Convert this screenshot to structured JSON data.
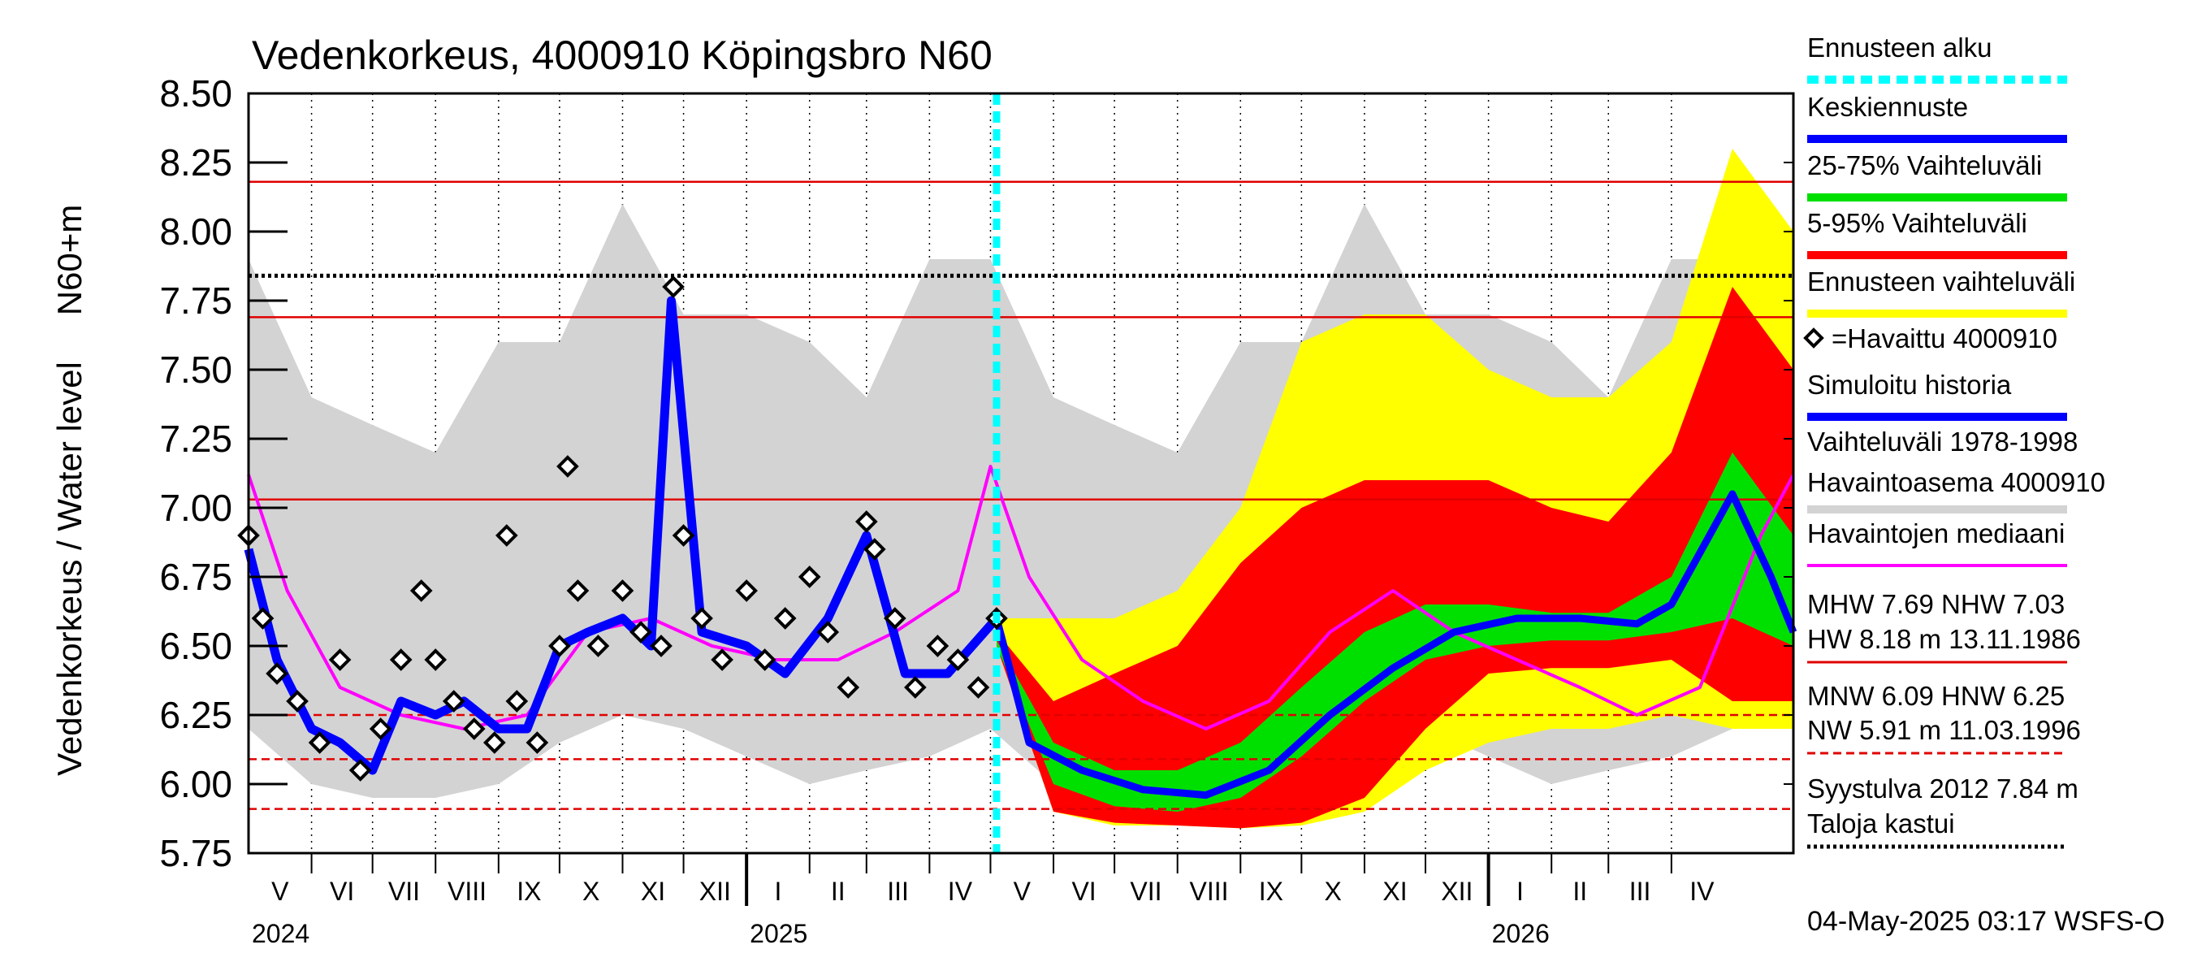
{
  "chart_data": {
    "type": "line",
    "title": "Vedenkorkeus, 4000910 Köpingsbro N60",
    "ylabel_top": "N60+m",
    "ylabel": "Vedenkorkeus / Water level",
    "ylim": [
      5.75,
      8.5
    ],
    "yticks": [
      "8.50",
      "8.25",
      "8.00",
      "7.75",
      "7.50",
      "7.25",
      "7.00",
      "6.75",
      "6.50",
      "6.25",
      "6.00",
      "5.75"
    ],
    "x_months": [
      "V",
      "VI",
      "VII",
      "VIII",
      "IX",
      "X",
      "XI",
      "XII",
      "I",
      "II",
      "III",
      "IV",
      "V",
      "VI",
      "VII",
      "VIII",
      "IX",
      "X",
      "XI",
      "XII",
      "I",
      "II",
      "III",
      "IV"
    ],
    "x_years": [
      "2024",
      "2025",
      "2026"
    ],
    "x_range": [
      "2024-05-01",
      "2026-05-31"
    ],
    "forecast_start": "2025-05-04",
    "reference_lines": [
      {
        "name": "HW",
        "value": 8.18,
        "style": "solid"
      },
      {
        "name": "Syystulva 2012",
        "value": 7.84,
        "style": "dotted"
      },
      {
        "name": "MHW",
        "value": 7.69,
        "style": "solid"
      },
      {
        "name": "NHW",
        "value": 7.03,
        "style": "solid"
      },
      {
        "name": "HNW",
        "value": 6.25,
        "style": "dashed"
      },
      {
        "name": "MNW",
        "value": 6.09,
        "style": "dashed"
      },
      {
        "name": "NW",
        "value": 5.91,
        "style": "dashed"
      }
    ],
    "series": [
      {
        "name": "Vaihteluväli 1978-1998 Havaintoasema 4000910",
        "color": "#d3d3d3",
        "x": [
          "2024-05-01",
          "2024-06-01",
          "2024-07-01",
          "2024-08-01",
          "2024-09-01",
          "2024-10-01",
          "2024-11-01",
          "2024-12-01",
          "2025-01-01",
          "2025-02-01",
          "2025-03-01",
          "2025-04-01",
          "2025-05-01",
          "2025-06-01",
          "2025-07-01",
          "2025-08-01",
          "2025-09-01",
          "2025-10-01",
          "2025-11-01",
          "2025-12-01",
          "2026-01-01",
          "2026-02-01",
          "2026-03-01",
          "2026-04-01",
          "2026-05-01",
          "2026-05-31"
        ],
        "low": [
          6.2,
          6.0,
          5.95,
          5.95,
          6.0,
          6.15,
          6.25,
          6.2,
          6.1,
          6.0,
          6.05,
          6.1,
          6.2,
          6.0,
          5.95,
          5.95,
          6.0,
          6.15,
          6.25,
          6.2,
          6.1,
          6.0,
          6.05,
          6.1,
          6.2,
          6.2
        ],
        "high": [
          7.9,
          7.4,
          7.3,
          7.2,
          7.6,
          7.6,
          8.1,
          7.7,
          7.7,
          7.6,
          7.4,
          7.9,
          7.9,
          7.4,
          7.3,
          7.2,
          7.6,
          7.6,
          8.1,
          7.7,
          7.7,
          7.6,
          7.4,
          7.9,
          7.9,
          7.7
        ]
      },
      {
        "name": "Ennusteen vaihteluväli",
        "color": "#ffff00",
        "x": [
          "2025-05-04",
          "2025-06-01",
          "2025-07-01",
          "2025-08-01",
          "2025-09-01",
          "2025-10-01",
          "2025-11-01",
          "2025-12-01",
          "2026-01-01",
          "2026-02-01",
          "2026-03-01",
          "2026-04-01",
          "2026-05-01",
          "2026-05-31"
        ],
        "low": [
          6.5,
          5.9,
          5.85,
          5.85,
          5.84,
          5.85,
          5.9,
          6.05,
          6.15,
          6.2,
          6.2,
          6.25,
          6.2,
          6.2
        ],
        "high": [
          6.6,
          6.6,
          6.6,
          6.7,
          7.0,
          7.6,
          7.7,
          7.7,
          7.5,
          7.4,
          7.4,
          7.6,
          8.3,
          8.0
        ]
      },
      {
        "name": "5-95% Vaihteluväli",
        "color": "#ff0000",
        "x": [
          "2025-05-04",
          "2025-06-01",
          "2025-07-01",
          "2025-08-01",
          "2025-09-01",
          "2025-10-01",
          "2025-11-01",
          "2025-12-01",
          "2026-01-01",
          "2026-02-01",
          "2026-03-01",
          "2026-04-01",
          "2026-05-01",
          "2026-05-31"
        ],
        "low": [
          6.5,
          5.9,
          5.86,
          5.85,
          5.84,
          5.86,
          5.95,
          6.2,
          6.4,
          6.42,
          6.42,
          6.45,
          6.3,
          6.3
        ],
        "high": [
          6.55,
          6.3,
          6.4,
          6.5,
          6.8,
          7.0,
          7.1,
          7.1,
          7.1,
          7.0,
          6.95,
          7.2,
          7.8,
          7.5
        ]
      },
      {
        "name": "25-75% Vaihteluväli",
        "color": "#00e000",
        "x": [
          "2025-05-04",
          "2025-06-01",
          "2025-07-01",
          "2025-08-01",
          "2025-09-01",
          "2025-10-01",
          "2025-11-01",
          "2025-12-01",
          "2026-01-01",
          "2026-02-01",
          "2026-03-01",
          "2026-04-01",
          "2026-05-01",
          "2026-05-31"
        ],
        "low": [
          6.5,
          6.0,
          5.92,
          5.9,
          5.95,
          6.1,
          6.3,
          6.45,
          6.5,
          6.52,
          6.52,
          6.55,
          6.6,
          6.5
        ],
        "high": [
          6.52,
          6.15,
          6.05,
          6.05,
          6.15,
          6.35,
          6.55,
          6.65,
          6.65,
          6.62,
          6.62,
          6.75,
          7.2,
          6.9
        ]
      },
      {
        "name": "Havaintojen mediaani",
        "color": "#ff00ff",
        "x": [
          "2024-05-01",
          "2024-05-20",
          "2024-06-15",
          "2024-07-15",
          "2024-08-15",
          "2024-09-15",
          "2024-10-15",
          "2024-11-15",
          "2024-12-15",
          "2025-01-15",
          "2025-02-15",
          "2025-03-15",
          "2025-04-15",
          "2025-05-01",
          "2025-05-20",
          "2025-06-15",
          "2025-07-15",
          "2025-08-15",
          "2025-09-15",
          "2025-10-15",
          "2025-11-15",
          "2025-12-15",
          "2026-01-15",
          "2026-02-15",
          "2026-03-15",
          "2026-04-15",
          "2026-05-15",
          "2026-05-31"
        ],
        "values": [
          7.12,
          6.7,
          6.35,
          6.25,
          6.2,
          6.25,
          6.55,
          6.6,
          6.5,
          6.45,
          6.45,
          6.55,
          6.7,
          7.15,
          6.75,
          6.45,
          6.3,
          6.2,
          6.3,
          6.55,
          6.7,
          6.55,
          6.45,
          6.35,
          6.25,
          6.35,
          6.9,
          7.12
        ]
      },
      {
        "name": "Simuloitu historia",
        "color": "#0000ff",
        "x": [
          "2024-05-01",
          "2024-05-15",
          "2024-06-01",
          "2024-06-15",
          "2024-07-01",
          "2024-07-15",
          "2024-08-01",
          "2024-08-15",
          "2024-09-01",
          "2024-09-15",
          "2024-10-01",
          "2024-10-15",
          "2024-11-01",
          "2024-11-15",
          "2024-11-25",
          "2024-12-10",
          "2025-01-01",
          "2025-01-20",
          "2025-02-10",
          "2025-03-01",
          "2025-03-20",
          "2025-04-10",
          "2025-05-04"
        ],
        "values": [
          6.85,
          6.45,
          6.2,
          6.15,
          6.05,
          6.3,
          6.25,
          6.3,
          6.2,
          6.2,
          6.5,
          6.55,
          6.6,
          6.5,
          7.75,
          6.55,
          6.5,
          6.4,
          6.6,
          6.9,
          6.4,
          6.4,
          6.6
        ]
      },
      {
        "name": "Keskiennuste",
        "color": "#0000ff",
        "x": [
          "2025-05-04",
          "2025-05-20",
          "2025-06-15",
          "2025-07-15",
          "2025-08-15",
          "2025-09-15",
          "2025-10-15",
          "2025-11-15",
          "2025-12-15",
          "2026-01-15",
          "2026-02-15",
          "2026-03-15",
          "2026-04-01",
          "2026-05-01",
          "2026-05-20",
          "2026-05-31"
        ],
        "values": [
          6.6,
          6.15,
          6.05,
          5.98,
          5.96,
          6.05,
          6.25,
          6.42,
          6.55,
          6.6,
          6.6,
          6.58,
          6.65,
          7.05,
          6.75,
          6.55
        ]
      },
      {
        "name": "=Havaittu 4000910",
        "color": "#000000",
        "type": "scatter",
        "x": [
          "2024-05-01",
          "2024-05-08",
          "2024-05-15",
          "2024-05-25",
          "2024-06-05",
          "2024-06-15",
          "2024-06-25",
          "2024-07-05",
          "2024-07-15",
          "2024-07-25",
          "2024-08-01",
          "2024-08-10",
          "2024-08-20",
          "2024-08-30",
          "2024-09-05",
          "2024-09-10",
          "2024-09-20",
          "2024-10-01",
          "2024-10-05",
          "2024-10-10",
          "2024-10-20",
          "2024-11-01",
          "2024-11-10",
          "2024-11-20",
          "2024-11-26",
          "2024-12-01",
          "2024-12-10",
          "2024-12-20",
          "2025-01-01",
          "2025-01-10",
          "2025-01-20",
          "2025-02-01",
          "2025-02-10",
          "2025-02-20",
          "2025-03-01",
          "2025-03-05",
          "2025-03-15",
          "2025-03-25",
          "2025-04-05",
          "2025-04-15",
          "2025-04-25",
          "2025-05-04"
        ],
        "values": [
          6.9,
          6.6,
          6.4,
          6.3,
          6.15,
          6.45,
          6.05,
          6.2,
          6.45,
          6.7,
          6.45,
          6.3,
          6.2,
          6.15,
          6.9,
          6.3,
          6.15,
          6.5,
          7.15,
          6.7,
          6.5,
          6.7,
          6.55,
          6.5,
          7.8,
          6.9,
          6.6,
          6.45,
          6.7,
          6.45,
          6.6,
          6.75,
          6.55,
          6.35,
          6.95,
          6.85,
          6.6,
          6.35,
          6.5,
          6.45,
          6.35,
          6.6
        ]
      }
    ]
  },
  "legend": {
    "items": [
      {
        "label": "Ennusteen alku",
        "color": "#00ffff",
        "style": "dashed"
      },
      {
        "label": "Keskiennuste",
        "color": "#0000ff",
        "style": "solid"
      },
      {
        "label": "25-75% Vaihteluväli",
        "color": "#00e000",
        "style": "solid"
      },
      {
        "label": "5-95% Vaihteluväli",
        "color": "#ff0000",
        "style": "solid"
      },
      {
        "label": "Ennusteen vaihteluväli",
        "color": "#ffff00",
        "style": "solid"
      },
      {
        "label": "=Havaittu 4000910",
        "color": "#000000",
        "style": "diamond"
      },
      {
        "label": "Simuloitu historia",
        "color": "#0000ff",
        "style": "solid"
      },
      {
        "label": "Vaihteluväli 1978-1998",
        "label2": " Havaintoasema 4000910",
        "color": "#d3d3d3",
        "style": "solid"
      },
      {
        "label": "Havaintojen mediaani",
        "color": "#ff00ff",
        "style": "thin"
      }
    ],
    "stats": [
      {
        "text": "MHW   7.69 NHW   7.03"
      },
      {
        "text": "HW   8.18 m 13.11.1986",
        "line": "solid"
      },
      {
        "text": "MNW   6.09 HNW   6.25"
      },
      {
        "text": "NW   5.91 m 11.03.1996",
        "line": "dashed"
      },
      {
        "text": "Syystulva 2012 7.84 m"
      },
      {
        "text": "Taloja kastui",
        "line": "dotted"
      }
    ]
  },
  "footer": "04-May-2025 03:17 WSFS-O"
}
